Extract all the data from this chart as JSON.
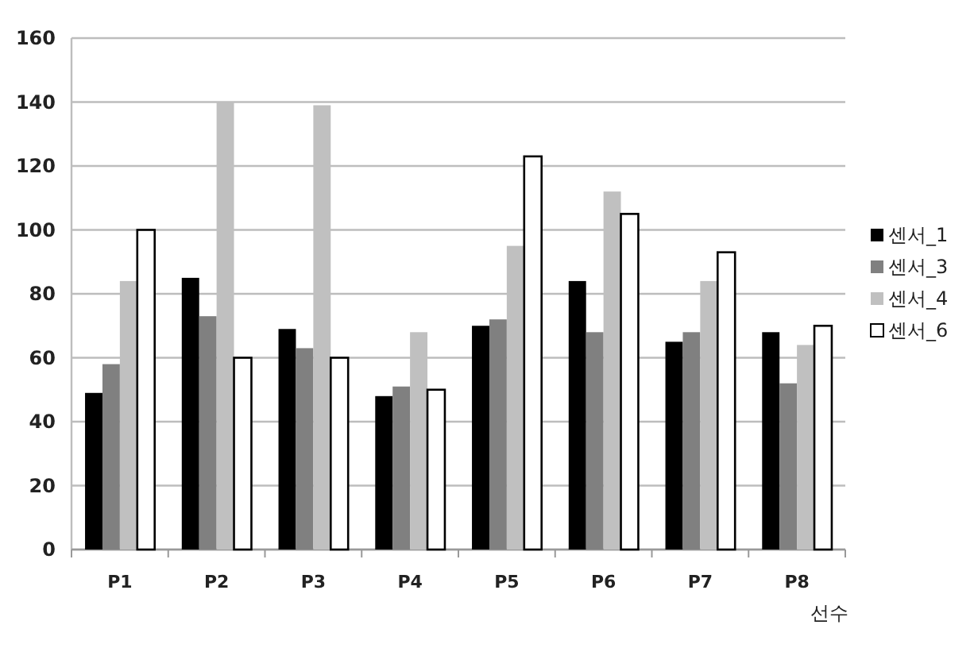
{
  "chart_data": {
    "type": "bar",
    "xlabel": "선수",
    "categories": [
      "P1",
      "P2",
      "P3",
      "P4",
      "P5",
      "P6",
      "P7",
      "P8"
    ],
    "series": [
      {
        "name": "센서_1",
        "color": "#000000",
        "values": [
          49,
          85,
          69,
          48,
          70,
          84,
          65,
          68
        ]
      },
      {
        "name": "센서_3",
        "color": "#808080",
        "values": [
          58,
          73,
          63,
          51,
          72,
          68,
          68,
          52
        ]
      },
      {
        "name": "센서_4",
        "color": "#c0c0c0",
        "values": [
          84,
          140,
          139,
          68,
          95,
          112,
          84,
          64
        ]
      },
      {
        "name": "센서_6",
        "color": "#ffffff",
        "values": [
          100,
          60,
          60,
          50,
          123,
          105,
          93,
          70
        ]
      }
    ],
    "ylim": [
      0,
      160
    ],
    "yticks": [
      0,
      20,
      40,
      60,
      80,
      100,
      120,
      140,
      160
    ],
    "grid": "y",
    "legend": "right"
  }
}
